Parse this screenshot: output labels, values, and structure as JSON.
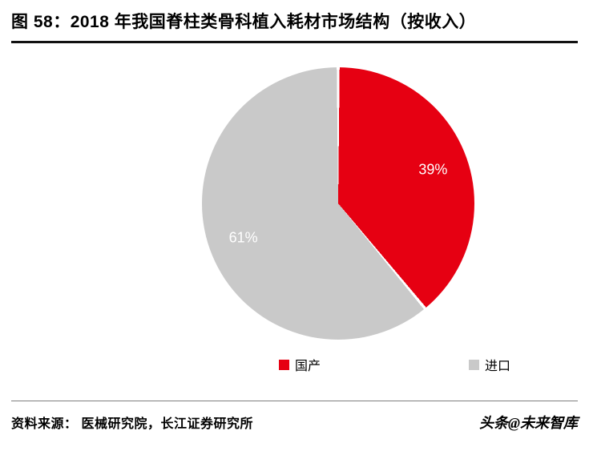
{
  "header": {
    "title": "图 58：2018 年我国脊柱类骨科植入耗材市场结构（按收入）"
  },
  "chart_data": {
    "type": "pie",
    "title": "2018 年我国脊柱类骨科植入耗材市场结构（按收入）",
    "categories": [
      "国产",
      "进口"
    ],
    "values": [
      39,
      61
    ],
    "data_labels": [
      "39%",
      "61%"
    ],
    "colors": [
      "#e60012",
      "#c9c9c9"
    ],
    "start_angle_deg": 0,
    "direction": "clockwise",
    "legend_position": "bottom",
    "legend": [
      "国产",
      "进口"
    ]
  },
  "footer": {
    "source": "资料来源： 医械研究院，长江证券研究所",
    "watermark": "头条@未来智库"
  }
}
